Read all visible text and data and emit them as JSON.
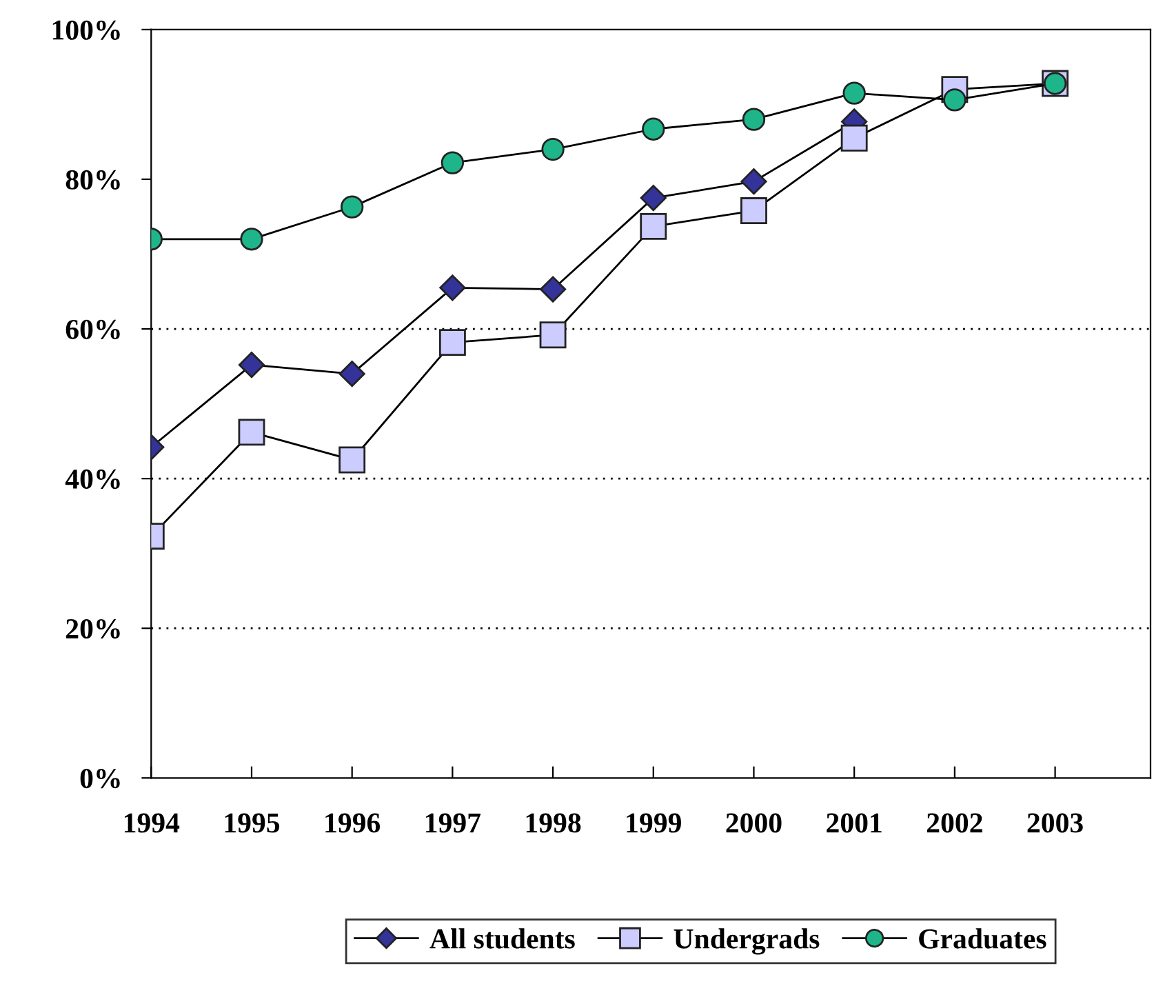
{
  "chart_data": {
    "type": "line",
    "categories": [
      "1994",
      "1995",
      "1996",
      "1997",
      "1998",
      "1999",
      "2000",
      "2001",
      "2002",
      "2003"
    ],
    "series": [
      {
        "name": "All students",
        "color": "#333399",
        "marker": "diamond",
        "values": [
          44.2,
          55.2,
          54,
          65.5,
          65.3,
          77.5,
          79.7,
          87.7,
          null,
          null
        ]
      },
      {
        "name": "Undergrads",
        "color": "#ccccff",
        "marker": "square",
        "values": [
          32.3,
          46.2,
          42.5,
          58.2,
          59.2,
          73.7,
          75.8,
          85.5,
          92,
          92.8
        ]
      },
      {
        "name": "Graduates",
        "color": "#1fb58a",
        "marker": "circle",
        "values": [
          72,
          72,
          76.3,
          82.2,
          84,
          86.7,
          88,
          91.5,
          90.6,
          92.8
        ]
      }
    ],
    "ylim": [
      0,
      100
    ],
    "yticks": [
      {
        "value": 0,
        "label": "0%"
      },
      {
        "value": 20,
        "label": "20%"
      },
      {
        "value": 40,
        "label": "40%"
      },
      {
        "value": 60,
        "label": "60%"
      },
      {
        "value": 80,
        "label": "80%"
      },
      {
        "value": 100,
        "label": "100%"
      }
    ],
    "ref_lines": [
      {
        "axis": "y",
        "value": 20,
        "line_style": "dotted"
      },
      {
        "axis": "y",
        "value": 40,
        "line_style": "dotted"
      },
      {
        "axis": "y",
        "value": 60,
        "line_style": "dotted"
      }
    ],
    "grid": false,
    "legend": "bottom"
  }
}
